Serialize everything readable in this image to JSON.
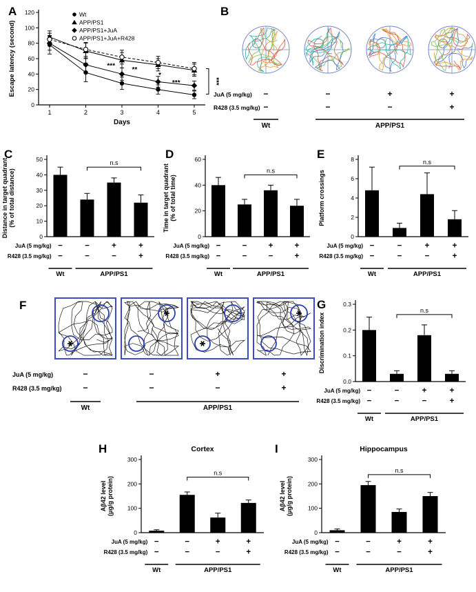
{
  "panels": {
    "A": {
      "letter": "A"
    },
    "B": {
      "letter": "B"
    },
    "C": {
      "letter": "C"
    },
    "D": {
      "letter": "D"
    },
    "E": {
      "letter": "E"
    },
    "F": {
      "letter": "F"
    },
    "G": {
      "letter": "G"
    },
    "H": {
      "letter": "H"
    },
    "I": {
      "letter": "I"
    }
  },
  "treatments": {
    "rows": [
      {
        "label": "JuA (5 mg/kg)",
        "signs": [
          "−",
          "−",
          "+",
          "+"
        ]
      },
      {
        "label": "R428 (3.5 mg/kg)",
        "signs": [
          "−",
          "−",
          "−",
          "+"
        ]
      }
    ],
    "groups": [
      {
        "label": "Wt",
        "from": 0,
        "to": 0
      },
      {
        "label": "APP/PS1",
        "from": 1,
        "to": 3
      }
    ]
  },
  "chart_data": [
    {
      "panel": "A",
      "type": "line",
      "xlabel": "Days",
      "ylabel": "Escape latency (second)",
      "x": [
        1,
        2,
        3,
        4,
        5
      ],
      "ylim": [
        0,
        120
      ],
      "yticks": [
        0,
        20,
        40,
        60,
        80,
        100,
        120
      ],
      "series": [
        {
          "name": "Wt",
          "marker": "circle-filled",
          "dash": false,
          "values": [
            78,
            42,
            28,
            20,
            13
          ],
          "errors": [
            12,
            12,
            8,
            6,
            5
          ]
        },
        {
          "name": "APP/PS1",
          "marker": "triangle-filled",
          "dash": false,
          "values": [
            88,
            70,
            58,
            52,
            45
          ],
          "errors": [
            8,
            10,
            10,
            8,
            8
          ]
        },
        {
          "name": "APP/PS1+JuA",
          "marker": "diamond-filled",
          "dash": false,
          "values": [
            80,
            52,
            40,
            30,
            25
          ],
          "errors": [
            9,
            9,
            8,
            7,
            6
          ]
        },
        {
          "name": "APP/PS1+JuA+R428",
          "marker": "circle-open",
          "dash": true,
          "values": [
            85,
            72,
            62,
            55,
            47
          ],
          "errors": [
            8,
            9,
            9,
            8,
            8
          ]
        }
      ],
      "annotations": [
        {
          "x": 2.7,
          "y": 48,
          "text": "***"
        },
        {
          "x": 3.35,
          "y": 43,
          "text": "**"
        },
        {
          "x": 4.05,
          "y": 36,
          "text": "*"
        },
        {
          "x": 4.5,
          "y": 26,
          "text": "***"
        }
      ],
      "right_bracket": {
        "y1": 47,
        "y2": 14,
        "text": "***"
      }
    },
    {
      "panel": "B",
      "type": "maze",
      "arenas": 4,
      "circle_color": "#7186c7",
      "platform_color": "#9a9a9a",
      "trace_colors": [
        "#e79c3c",
        "#7cc24e",
        "#33b5a8",
        "#d95f52",
        "#4d7fc4"
      ]
    },
    {
      "panel": "C",
      "type": "bar",
      "ylabel": [
        "Distance in target quadrant",
        "(% of total distance)"
      ],
      "ylim": [
        0,
        50
      ],
      "yticks": [
        "0",
        "10",
        "20",
        "30",
        "40",
        "50"
      ],
      "values": [
        40,
        24,
        35,
        22
      ],
      "errors": [
        5,
        4,
        3,
        5
      ],
      "ns": {
        "label": "n.s",
        "from": 1,
        "to": 3,
        "y": 45
      }
    },
    {
      "panel": "D",
      "type": "bar",
      "ylabel": [
        "Time in target quadrant",
        "(% of total time)"
      ],
      "ylim": [
        0,
        60
      ],
      "yticks": [
        "0",
        "20",
        "40",
        "60"
      ],
      "values": [
        40,
        25,
        36,
        24
      ],
      "errors": [
        6,
        4,
        4,
        5
      ],
      "ns": {
        "label": "n.s",
        "from": 1,
        "to": 3,
        "y": 48
      }
    },
    {
      "panel": "E",
      "type": "bar",
      "ylabel": [
        "Platform crossings"
      ],
      "ylim": [
        0,
        8
      ],
      "yticks": [
        "0",
        "2",
        "4",
        "6",
        "8"
      ],
      "values": [
        4.8,
        0.9,
        4.4,
        1.8
      ],
      "errors": [
        2.4,
        0.5,
        2.2,
        0.9
      ],
      "ns": {
        "label": "n.s",
        "from": 1,
        "to": 3,
        "y": 7.3
      }
    },
    {
      "panel": "F",
      "type": "openfield",
      "arenas": 4,
      "border_color": "#3b4bc8",
      "object_color": "#2a3db0",
      "trace_color": "#1a1a1a"
    },
    {
      "panel": "G",
      "type": "bar",
      "ylabel": [
        "Discrimination index"
      ],
      "ylim": [
        0,
        0.3
      ],
      "yticks": [
        "0.0",
        "0.1",
        "0.2",
        "0.3"
      ],
      "values": [
        0.2,
        0.03,
        0.18,
        0.03
      ],
      "errors": [
        0.05,
        0.012,
        0.04,
        0.012
      ],
      "ns": {
        "label": "n.s",
        "from": 1,
        "to": 3,
        "y": 0.26
      }
    },
    {
      "panel": "H",
      "type": "bar",
      "title": "Cortex",
      "ylabel": [
        "Aβ42 level",
        "(μg/g protein)"
      ],
      "ylim": [
        0,
        300
      ],
      "yticks": [
        "0",
        "100",
        "200",
        "300"
      ],
      "values": [
        8,
        155,
        62,
        122
      ],
      "errors": [
        4,
        12,
        18,
        12
      ],
      "ns": {
        "label": "n.s",
        "from": 1,
        "to": 3,
        "y": 228
      }
    },
    {
      "panel": "I",
      "type": "bar",
      "title": "Hippocampus",
      "ylabel": [
        "Aβ42 level",
        "(μg/g protein)"
      ],
      "ylim": [
        0,
        300
      ],
      "yticks": [
        "0",
        "100",
        "200",
        "300"
      ],
      "values": [
        10,
        195,
        85,
        150
      ],
      "errors": [
        5,
        15,
        12,
        15
      ],
      "ns": {
        "label": "n.s",
        "from": 1,
        "to": 3,
        "y": 238
      }
    }
  ]
}
